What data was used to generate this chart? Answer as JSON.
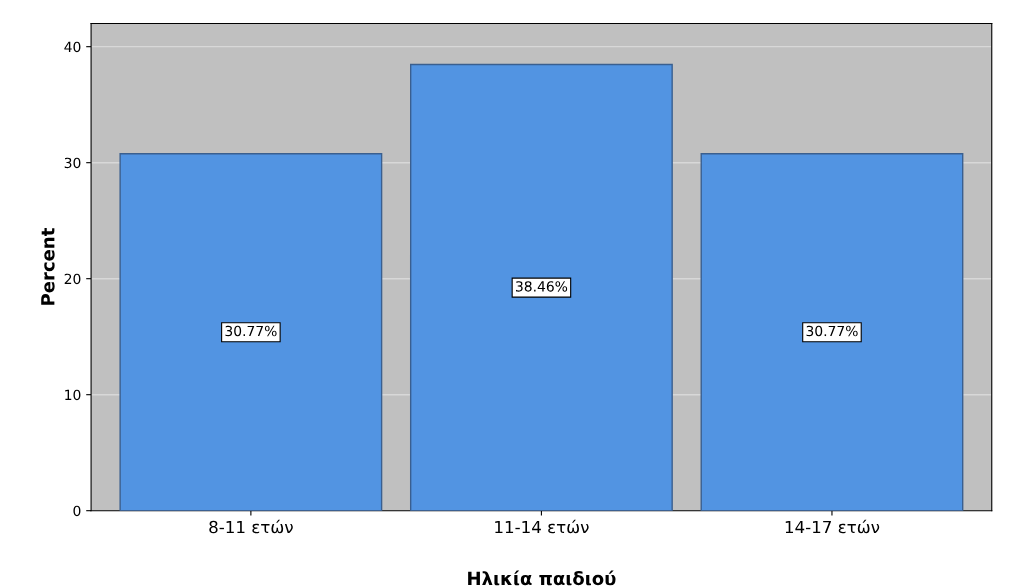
{
  "chart_data": {
    "type": "bar",
    "xlabel": "Ηλικία παιδιού",
    "ylabel": "Percent",
    "categories": [
      "8-11 ετών",
      "11-14 ετών",
      "14-17 ετών"
    ],
    "values": [
      30.77,
      38.46,
      30.77
    ],
    "value_labels": [
      "30.77%",
      "38.46%",
      "30.77%"
    ],
    "color": "#5294e2",
    "ylim": [
      0,
      42
    ],
    "yticks": [
      0,
      10,
      20,
      30,
      40
    ],
    "grid": "y"
  }
}
